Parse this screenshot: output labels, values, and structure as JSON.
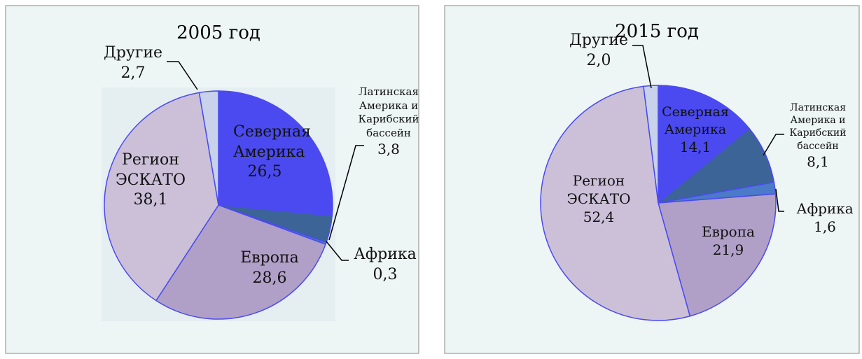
{
  "chart_data": [
    {
      "type": "pie",
      "title": "2005 год",
      "categories": [
        "Северная Америка",
        "Латинская Америка и Карибский бассейн",
        "Африка",
        "Европа",
        "Регион ЭСКАТО",
        "Другие"
      ],
      "values": [
        26.5,
        3.8,
        0.3,
        28.6,
        38.1,
        2.7
      ],
      "value_labels": [
        "26,5",
        "3,8",
        "0,3",
        "28,6",
        "38,1",
        "2,7"
      ],
      "colors": [
        "#4a4af0",
        "#3c6496",
        "#4a7ac8",
        "#b0a0c8",
        "#ccc0d9",
        "#c8d2ea"
      ]
    },
    {
      "type": "pie",
      "title": "2015 год",
      "categories": [
        "Северная Америка",
        "Латинская Америка и Карибский бассейн",
        "Африка",
        "Европа",
        "Регион ЭСКАТО",
        "Другие"
      ],
      "values": [
        14.1,
        8.1,
        1.6,
        21.9,
        52.4,
        2.0
      ],
      "value_labels": [
        "14,1",
        "8,1",
        "1,6",
        "21,9",
        "52,4",
        "2,0"
      ],
      "colors": [
        "#4a4af0",
        "#3c6496",
        "#4a7ac8",
        "#b0a0c8",
        "#ccc0d9",
        "#c8d2ea"
      ]
    }
  ]
}
